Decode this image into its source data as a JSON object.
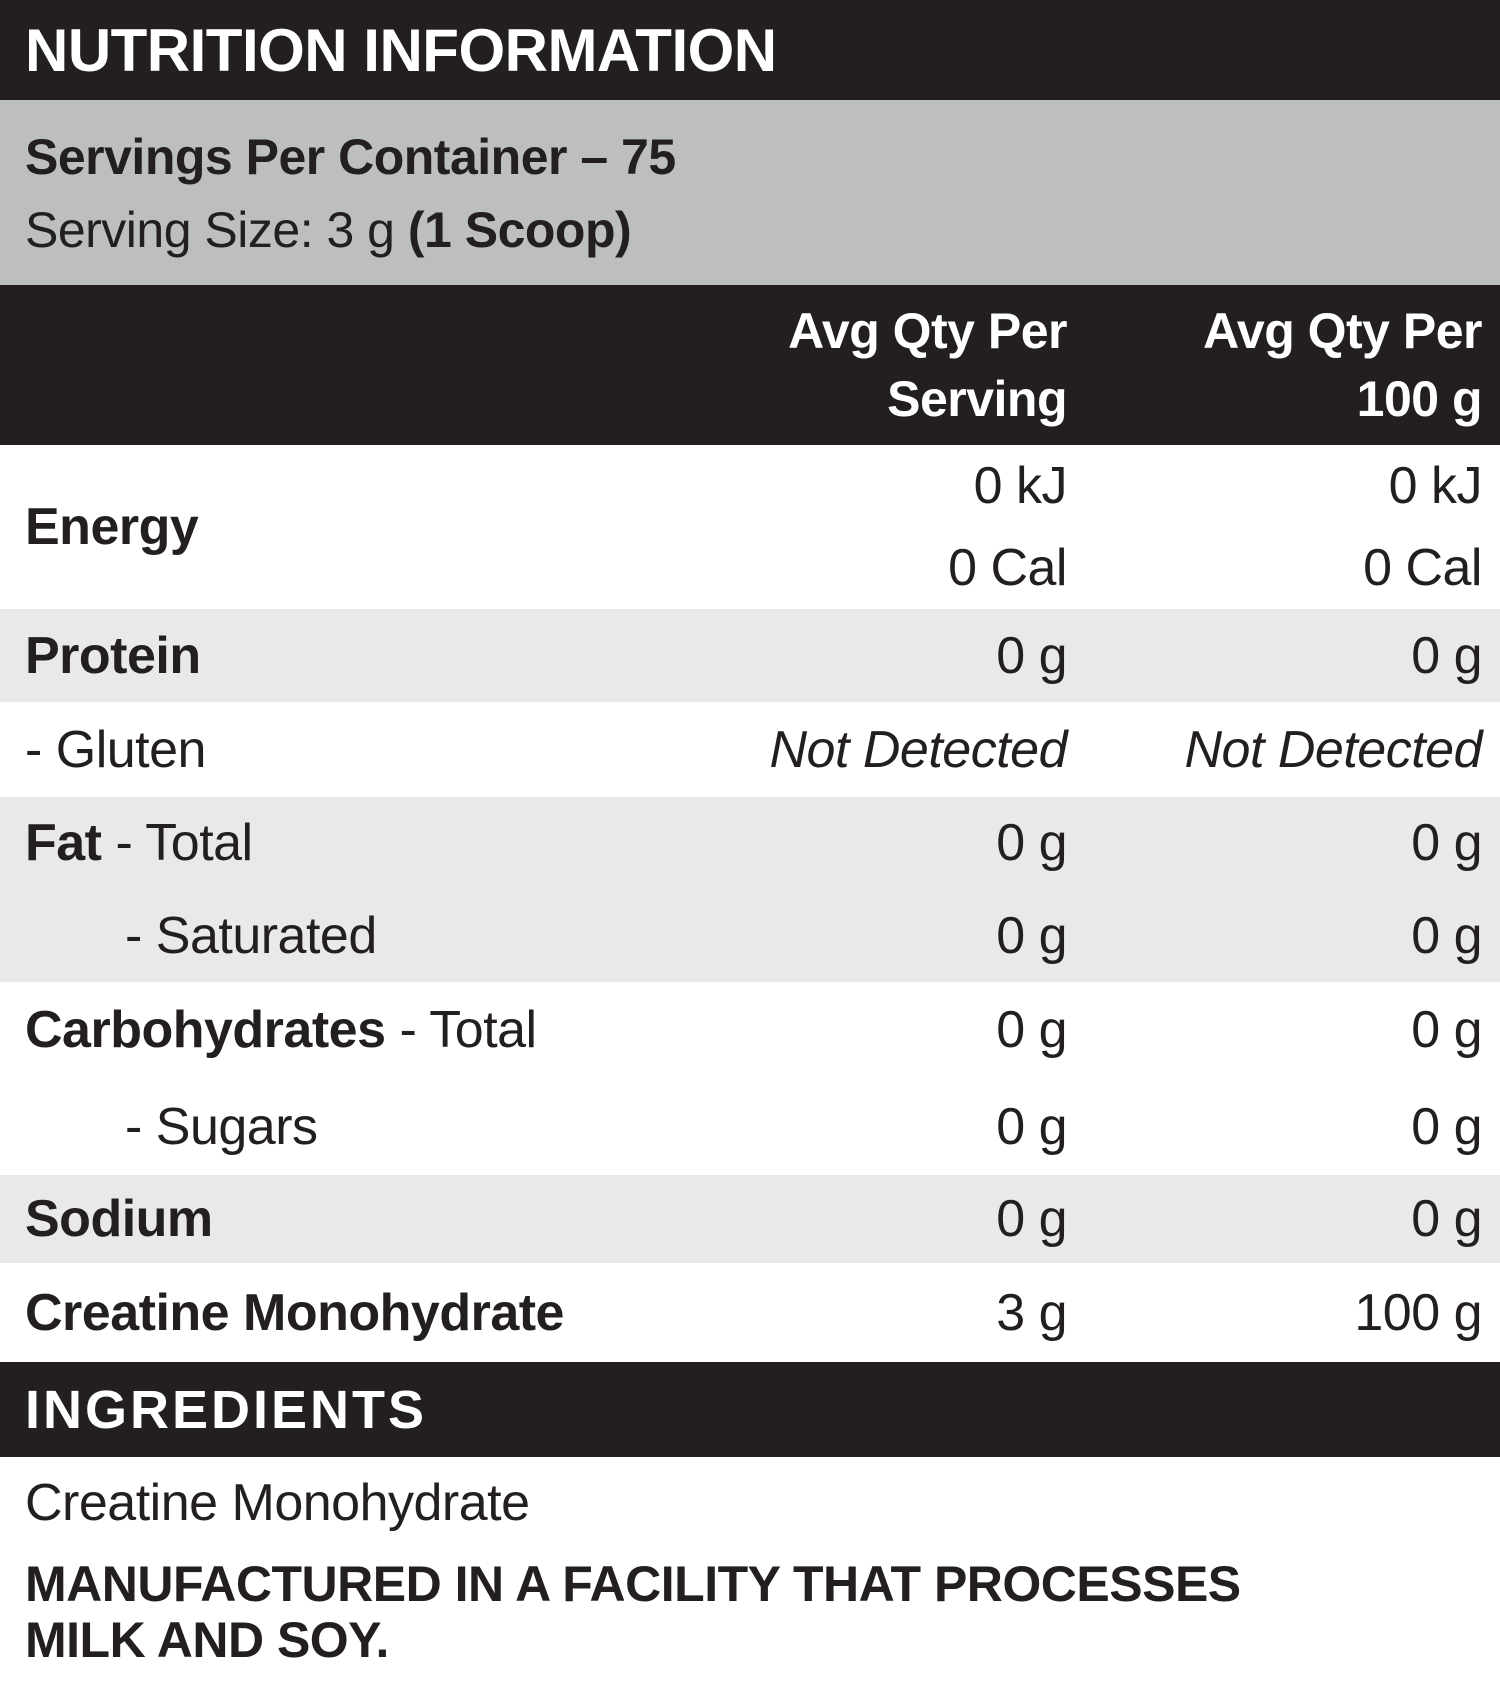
{
  "title": "NUTRITION INFORMATION",
  "serving_info": {
    "servings_line": "Servings Per Container – 75",
    "size_prefix": "Serving Size: 3 g ",
    "size_bold": "(1 Scoop)"
  },
  "table": {
    "header": {
      "serving_line1": "Avg Qty Per",
      "serving_line2": "Serving",
      "per100_line1": "Avg Qty Per",
      "per100_line2": "100 g"
    },
    "energy": {
      "label": "Energy",
      "serving_kj": "0 kJ",
      "serving_cal": "0 Cal",
      "per100_kj": "0 kJ",
      "per100_cal": "0 Cal"
    },
    "protein": {
      "label": "Protein",
      "serving": "0 g",
      "per100": "0 g"
    },
    "gluten": {
      "label": "- Gluten",
      "serving": "Not Detected",
      "per100": "Not Detected"
    },
    "fat_total": {
      "label_bold": "Fat",
      "label_rest": " - Total",
      "serving": "0 g",
      "per100": "0 g"
    },
    "fat_saturated": {
      "label": "- Saturated",
      "serving": "0 g",
      "per100": "0 g"
    },
    "carbs_total": {
      "label_bold": "Carbohydrates",
      "label_rest": " - Total",
      "serving": "0 g",
      "per100": "0 g"
    },
    "carbs_sugars": {
      "label": "- Sugars",
      "serving": "0 g",
      "per100": "0 g"
    },
    "sodium": {
      "label": "Sodium",
      "serving": "0 g",
      "per100": "0 g"
    },
    "creatine": {
      "label": "Creatine Monohydrate",
      "serving": "3 g",
      "per100": "100 g"
    }
  },
  "ingredients": {
    "heading": "INGREDIENTS",
    "body": "Creatine Monohydrate"
  },
  "allergen": {
    "line1": "MANUFACTURED IN A FACILITY THAT PROCESSES",
    "line2": "MILK AND SOY."
  },
  "colors": {
    "band_black": "#231f20",
    "band_gray": "#bdbec0",
    "row_stripe": "#e9e9eb",
    "text": "#231f20"
  }
}
